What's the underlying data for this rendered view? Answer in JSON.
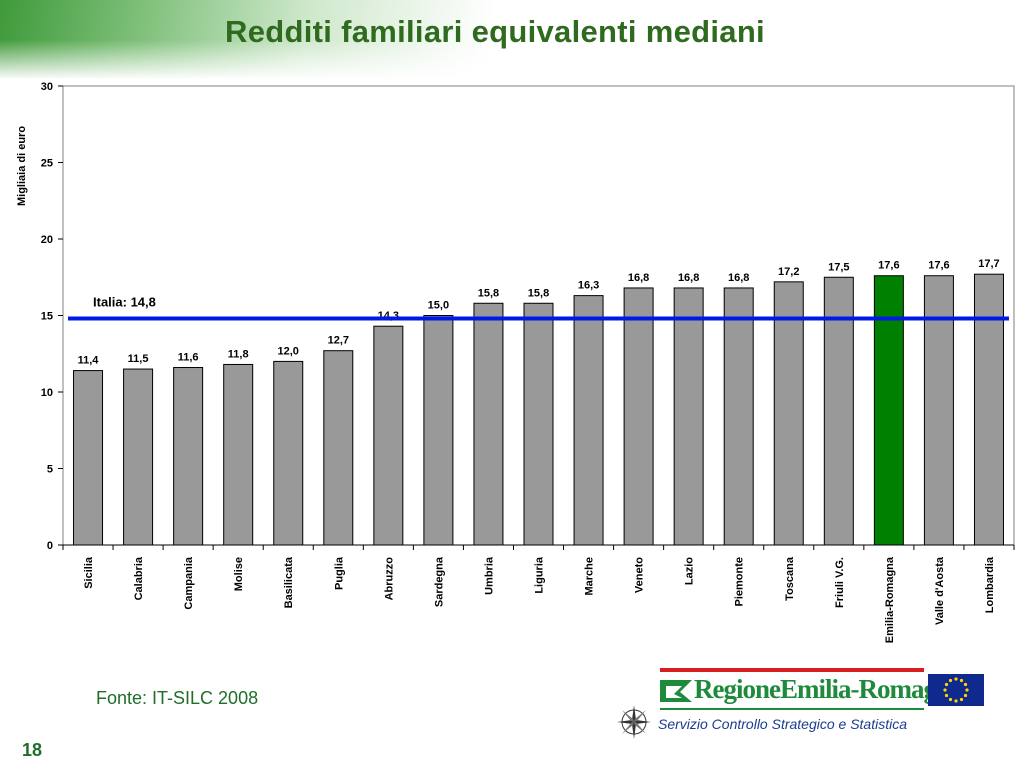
{
  "slide": {
    "title": "Redditi familiari equivalenti mediani",
    "source": "Fonte: IT-SILC 2008",
    "page_number": "18"
  },
  "logo": {
    "name": "RegioneEmilia-Romagna",
    "service": "Servizio Controllo Strategico e Statistica"
  },
  "colors": {
    "bar_default": "#999999",
    "bar_highlight": "#008000",
    "reference_line": "#0019e6",
    "title": "#2f6b1f"
  },
  "chart_data": {
    "type": "bar",
    "ylabel": "Migliaia di euro",
    "xlabel": "",
    "ylim": [
      0,
      30
    ],
    "yticks": [
      0,
      5,
      10,
      15,
      20,
      25,
      30
    ],
    "categories": [
      "Sicilia",
      "Calabria",
      "Campania",
      "Molise",
      "Basilicata",
      "Puglia",
      "Abruzzo",
      "Sardegna",
      "Umbria",
      "Liguria",
      "Marche",
      "Veneto",
      "Lazio",
      "Piemonte",
      "Toscana",
      "Friuli V.G.",
      "Emilia-Romagna",
      "Valle d'Aosta",
      "Lombardia"
    ],
    "values": [
      11.4,
      11.5,
      11.6,
      11.8,
      12.0,
      12.7,
      14.3,
      15.0,
      15.8,
      15.8,
      16.3,
      16.8,
      16.8,
      16.8,
      17.2,
      17.5,
      17.6,
      17.6,
      17.7
    ],
    "value_labels": [
      "11,4",
      "11,5",
      "11,6",
      "11,8",
      "12,0",
      "12,7",
      "14,3",
      "15,0",
      "15,8",
      "15,8",
      "16,3",
      "16,8",
      "16,8",
      "16,8",
      "17,2",
      "17,5",
      "17,6",
      "17,6",
      "17,7"
    ],
    "highlight_category": "Emilia-Romagna",
    "reference_line": {
      "label": "Italia: 14,8",
      "value": 14.8
    },
    "grid": false,
    "legend": "none"
  }
}
